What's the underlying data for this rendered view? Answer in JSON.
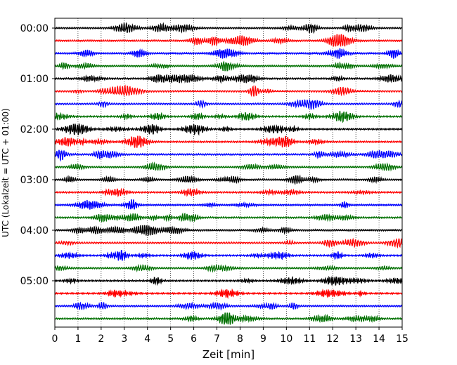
{
  "chart_data": {
    "type": "line",
    "title": "",
    "xlabel": "Zeit  [min]",
    "ylabel": "UTC (Lokalzeit = UTC + 01:00)",
    "xlim": [
      0,
      15
    ],
    "x_ticks": [
      0,
      1,
      2,
      3,
      4,
      5,
      6,
      7,
      8,
      9,
      10,
      11,
      12,
      13,
      14,
      15
    ],
    "y_ticks": [
      {
        "label": "00:00",
        "row": 0
      },
      {
        "label": "01:00",
        "row": 4
      },
      {
        "label": "02:00",
        "row": 8
      },
      {
        "label": "03:00",
        "row": 12
      },
      {
        "label": "04:00",
        "row": 16
      },
      {
        "label": "05:00",
        "row": 20
      }
    ],
    "trace_minutes": 15,
    "traces_per_hour": 4,
    "trace_count": 24,
    "trace_colors": [
      "#000000",
      "#ff0000",
      "#0000ff",
      "#007000"
    ],
    "grid": {
      "x": "dotted",
      "y": "none"
    }
  }
}
